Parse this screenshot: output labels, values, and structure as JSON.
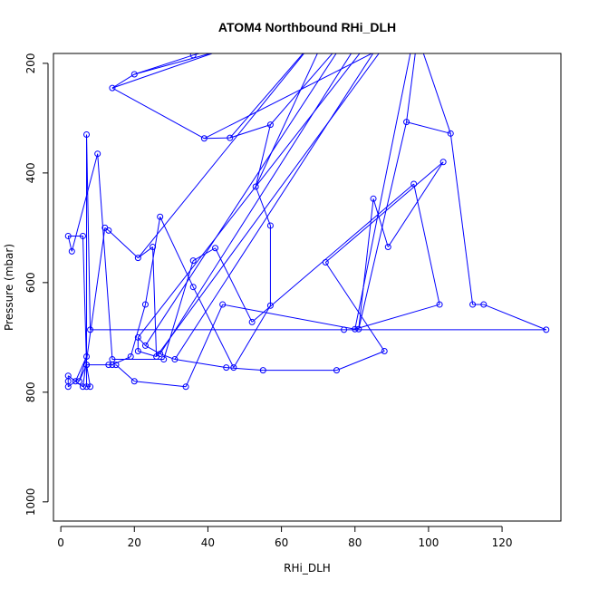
{
  "chart_data": {
    "type": "line",
    "title": "ATOM4 Northbound RHi_DLH",
    "xlabel": "RHi_DLH",
    "ylabel": "Pressure (mbar)",
    "xlim": [
      -2,
      136
    ],
    "ylim": [
      1035,
      182
    ],
    "y_reversed": true,
    "grid": false,
    "x_ticks": [
      0,
      20,
      40,
      60,
      80,
      100,
      120
    ],
    "y_ticks": [
      200,
      400,
      600,
      800,
      1000
    ],
    "colors": {
      "series": "#0000ff",
      "axis": "#000000"
    },
    "series": [
      {
        "marker": "open-circle",
        "x": [
          36,
          20,
          14,
          39,
          46,
          57,
          53,
          57,
          57,
          47,
          36,
          27,
          23,
          19,
          14,
          13,
          7,
          5,
          7,
          4,
          2,
          2,
          2,
          6,
          12,
          13,
          21,
          25,
          26,
          21,
          21,
          23,
          27,
          31,
          45,
          55,
          75,
          88,
          72,
          104,
          89,
          85,
          81,
          94,
          106,
          112,
          115,
          132,
          77,
          8,
          7,
          7,
          8,
          7,
          6,
          2,
          3,
          10,
          14,
          28,
          36,
          42,
          52,
          96,
          103,
          80,
          44,
          34,
          20,
          15
        ],
        "y": [
          185,
          220,
          245,
          337,
          336,
          312,
          425,
          496,
          642,
          755,
          608,
          480,
          640,
          735,
          750,
          750,
          750,
          780,
          735,
          780,
          790,
          780,
          770,
          790,
          500,
          505,
          555,
          535,
          735,
          725,
          700,
          715,
          730,
          740,
          755,
          760,
          760,
          725,
          563,
          380,
          535,
          447,
          685,
          307,
          328,
          640,
          640,
          686,
          686,
          686,
          330,
          790,
          790,
          750,
          515,
          515,
          543,
          365,
          740,
          740,
          560,
          537,
          672,
          420,
          640,
          685,
          640,
          790,
          780,
          750
        ]
      }
    ],
    "segments_offscreen_top": [
      [
        36,
        185,
        56,
        150
      ],
      [
        20,
        220,
        58,
        150
      ],
      [
        14,
        245,
        55,
        150
      ],
      [
        39,
        337,
        94,
        150
      ],
      [
        46,
        336,
        70,
        150
      ],
      [
        57,
        312,
        78,
        150
      ],
      [
        53,
        425,
        72,
        150
      ],
      [
        21,
        700,
        85,
        150
      ],
      [
        23,
        715,
        78,
        150
      ],
      [
        27,
        730,
        82,
        150
      ],
      [
        31,
        740,
        88,
        150
      ],
      [
        26,
        735,
        90,
        150
      ],
      [
        21,
        555,
        70,
        150
      ],
      [
        94,
        307,
        97,
        150
      ],
      [
        106,
        328,
        97,
        150
      ],
      [
        80,
        685,
        96,
        150
      ]
    ]
  }
}
